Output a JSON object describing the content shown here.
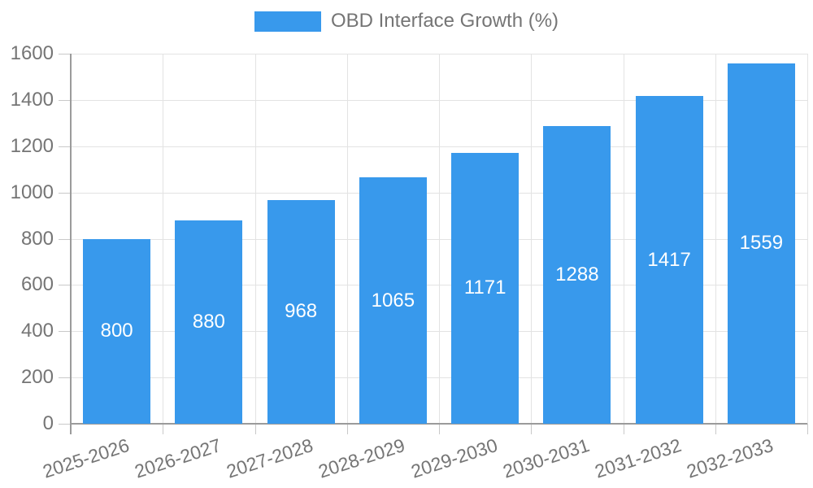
{
  "legend": {
    "label": "OBD Interface Growth (%)"
  },
  "colors": {
    "bar": "#3899ec",
    "grid": "#e3e3e3",
    "axis": "#9b9b9b",
    "tick": "#c9c9c9",
    "text": "#757575",
    "bar_label": "#ffffff",
    "background": "#ffffff"
  },
  "chart_data": {
    "type": "bar",
    "title": "OBD Interface Growth (%)",
    "categories": [
      "2025-2026",
      "2026-2027",
      "2027-2028",
      "2028-2029",
      "2029-2030",
      "2030-2031",
      "2031-2032",
      "2032-2033"
    ],
    "values": [
      800,
      880,
      968,
      1065,
      1171,
      1288,
      1417,
      1559
    ],
    "xlabel": "",
    "ylabel": "",
    "ylim": [
      0,
      1600
    ],
    "ytick_step": 200,
    "grid": true,
    "legend_position": "top",
    "value_labels": "inside-center",
    "xtick_rotation_deg": -18
  }
}
